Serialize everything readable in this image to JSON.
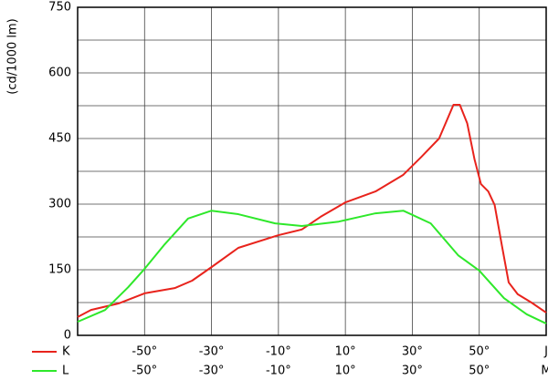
{
  "chart_data": {
    "type": "line",
    "y_label": "(cd/1000 lm)",
    "xlim": [
      -70,
      70
    ],
    "ylim": [
      0,
      750
    ],
    "yticks": [
      0,
      150,
      300,
      450,
      600,
      750
    ],
    "y_minor_gridlines": [
      75,
      225,
      375,
      525,
      675
    ],
    "xticks": [
      {
        "value": -50,
        "label": "-50°"
      },
      {
        "value": -30,
        "label": "-30°"
      },
      {
        "value": -10,
        "label": "-10°"
      },
      {
        "value": 10,
        "label": "10°"
      },
      {
        "value": 30,
        "label": "30°"
      },
      {
        "value": 50,
        "label": "50°"
      },
      {
        "value": 70,
        "label": "J"
      }
    ],
    "xticks_row2": [
      {
        "value": -50,
        "label": "-50°"
      },
      {
        "value": -30,
        "label": "-30°"
      },
      {
        "value": -10,
        "label": "-10°"
      },
      {
        "value": 10,
        "label": "10°"
      },
      {
        "value": 30,
        "label": "30°"
      },
      {
        "value": 50,
        "label": "50°"
      },
      {
        "value": 70,
        "label": "M"
      }
    ],
    "grid": true,
    "series": [
      {
        "name": "K",
        "color": "#e8231c",
        "x": [
          -70,
          -66,
          -57.7,
          -50,
          -41,
          -35.8,
          -30,
          -22,
          -10,
          -3,
          2.6,
          10,
          19,
          27.3,
          32.7,
          38,
          42.3,
          44.2,
          46.4,
          48.6,
          50.5,
          52.7,
          54.6,
          56.8,
          58.8,
          61.5,
          65.6,
          70
        ],
        "values": [
          42,
          58,
          73,
          96,
          108,
          125,
          156,
          200,
          229,
          242,
          271,
          304,
          329,
          367,
          408,
          450,
          527,
          527,
          485,
          402,
          346,
          329,
          298,
          204,
          121,
          94,
          75,
          52
        ]
      },
      {
        "name": "L",
        "color": "#2ee82a",
        "x": [
          -70,
          -61.8,
          -54.9,
          -50,
          -44,
          -37,
          -30,
          -22,
          -11,
          -3,
          8,
          19,
          27.3,
          35.5,
          43.7,
          50,
          57.4,
          64.2,
          70
        ],
        "values": [
          31,
          58,
          110,
          152,
          208,
          267,
          285,
          277,
          256,
          250,
          260,
          279,
          285,
          256,
          183,
          148,
          85,
          48,
          27
        ]
      }
    ]
  }
}
